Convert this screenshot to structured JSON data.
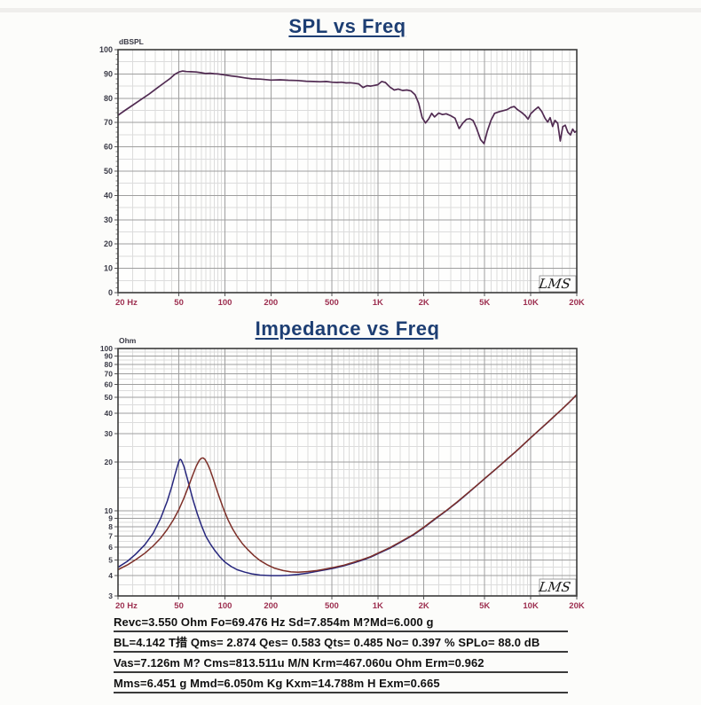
{
  "chart_data": [
    {
      "type": "line",
      "title": "SPL vs Freq",
      "unit_label": "dBSPL",
      "watermark": "LMS",
      "x_scale": "log",
      "x_range": [
        20,
        20000
      ],
      "x_ticks": [
        [
          20,
          "20 Hz"
        ],
        [
          50,
          "50"
        ],
        [
          100,
          "100"
        ],
        [
          200,
          "200"
        ],
        [
          500,
          "500"
        ],
        [
          1000,
          "1K"
        ],
        [
          2000,
          "2K"
        ],
        [
          5000,
          "5K"
        ],
        [
          10000,
          "10K"
        ],
        [
          20000,
          "20K"
        ]
      ],
      "y_scale": "linear",
      "y_range": [
        0,
        100
      ],
      "y_ticks": [
        [
          100,
          "100"
        ],
        [
          90,
          "90"
        ],
        [
          80,
          "80"
        ],
        [
          70,
          "70"
        ],
        [
          60,
          "60"
        ],
        [
          50,
          "50"
        ],
        [
          40,
          "40"
        ],
        [
          30,
          "30"
        ],
        [
          20,
          "20"
        ],
        [
          10,
          "10"
        ],
        [
          0,
          "0"
        ]
      ],
      "grid": "on",
      "series": [
        {
          "name": "spl-response",
          "color": "#512b52",
          "points": [
            [
              20,
              73
            ],
            [
              22,
              74.8
            ],
            [
              25,
              77.2
            ],
            [
              28,
              79.3
            ],
            [
              32,
              81.8
            ],
            [
              36,
              84.2
            ],
            [
              40,
              86.3
            ],
            [
              44,
              88.2
            ],
            [
              47,
              89.8
            ],
            [
              50,
              90.8
            ],
            [
              53,
              91.2
            ],
            [
              56,
              91.0
            ],
            [
              60,
              90.9
            ],
            [
              65,
              90.8
            ],
            [
              70,
              90.5
            ],
            [
              75,
              90.2
            ],
            [
              80,
              90.3
            ],
            [
              85,
              90.1
            ],
            [
              90,
              90.0
            ],
            [
              100,
              89.6
            ],
            [
              110,
              89.2
            ],
            [
              120,
              88.9
            ],
            [
              135,
              88.4
            ],
            [
              150,
              88.0
            ],
            [
              170,
              87.9
            ],
            [
              200,
              87.5
            ],
            [
              230,
              87.6
            ],
            [
              260,
              87.4
            ],
            [
              300,
              87.3
            ],
            [
              340,
              87.0
            ],
            [
              380,
              86.9
            ],
            [
              420,
              86.8
            ],
            [
              460,
              86.9
            ],
            [
              500,
              86.6
            ],
            [
              540,
              86.5
            ],
            [
              580,
              86.6
            ],
            [
              620,
              86.3
            ],
            [
              660,
              86.4
            ],
            [
              700,
              86.2
            ],
            [
              750,
              85.9
            ],
            [
              800,
              84.4
            ],
            [
              850,
              85.2
            ],
            [
              900,
              85.0
            ],
            [
              950,
              85.3
            ],
            [
              1000,
              85.6
            ],
            [
              1060,
              86.9
            ],
            [
              1120,
              86.5
            ],
            [
              1200,
              84.6
            ],
            [
              1280,
              83.4
            ],
            [
              1360,
              83.8
            ],
            [
              1450,
              83.2
            ],
            [
              1550,
              83.4
            ],
            [
              1650,
              83.0
            ],
            [
              1750,
              81.5
            ],
            [
              1850,
              78.0
            ],
            [
              1950,
              72.0
            ],
            [
              2050,
              69.8
            ],
            [
              2150,
              71.5
            ],
            [
              2250,
              73.8
            ],
            [
              2350,
              72.3
            ],
            [
              2500,
              73.9
            ],
            [
              2650,
              73.3
            ],
            [
              2800,
              73.6
            ],
            [
              3000,
              72.8
            ],
            [
              3200,
              71.8
            ],
            [
              3400,
              67.5
            ],
            [
              3600,
              69.8
            ],
            [
              3800,
              71.3
            ],
            [
              4000,
              71.6
            ],
            [
              4200,
              70.8
            ],
            [
              4400,
              68.0
            ],
            [
              4700,
              63.0
            ],
            [
              4950,
              61.3
            ],
            [
              5200,
              66.5
            ],
            [
              5500,
              71.0
            ],
            [
              5800,
              73.8
            ],
            [
              6200,
              74.4
            ],
            [
              6600,
              74.9
            ],
            [
              7000,
              75.3
            ],
            [
              7400,
              76.2
            ],
            [
              7800,
              76.6
            ],
            [
              8200,
              75.3
            ],
            [
              8700,
              74.2
            ],
            [
              9200,
              72.9
            ],
            [
              9600,
              71.4
            ],
            [
              10000,
              73.6
            ],
            [
              10600,
              75.2
            ],
            [
              11200,
              76.4
            ],
            [
              11800,
              74.6
            ],
            [
              12400,
              71.8
            ],
            [
              12900,
              70.2
            ],
            [
              13400,
              72.0
            ],
            [
              13900,
              68.4
            ],
            [
              14400,
              70.9
            ],
            [
              15000,
              69.7
            ],
            [
              15600,
              62.4
            ],
            [
              16200,
              68.3
            ],
            [
              16800,
              68.9
            ],
            [
              17500,
              66.0
            ],
            [
              18200,
              64.9
            ],
            [
              18800,
              67.3
            ],
            [
              19400,
              66.0
            ],
            [
              20000,
              66.6
            ]
          ]
        }
      ]
    },
    {
      "type": "line",
      "title": "Impedance vs Freq",
      "unit_label": "Ohm",
      "watermark": "LMS",
      "x_scale": "log",
      "x_range": [
        20,
        20000
      ],
      "x_ticks": [
        [
          20,
          "20 Hz"
        ],
        [
          50,
          "50"
        ],
        [
          100,
          "100"
        ],
        [
          200,
          "200"
        ],
        [
          500,
          "500"
        ],
        [
          1000,
          "1K"
        ],
        [
          2000,
          "2K"
        ],
        [
          5000,
          "5K"
        ],
        [
          10000,
          "10K"
        ],
        [
          20000,
          "20K"
        ]
      ],
      "y_scale": "log",
      "y_range": [
        3,
        100
      ],
      "y_ticks": [
        [
          100,
          "100"
        ],
        [
          90,
          "90"
        ],
        [
          80,
          "80"
        ],
        [
          70,
          "70"
        ],
        [
          60,
          "60"
        ],
        [
          50,
          "50"
        ],
        [
          40,
          "40"
        ],
        [
          30,
          "30"
        ],
        [
          20,
          "20"
        ],
        [
          10,
          "10"
        ],
        [
          9,
          "9"
        ],
        [
          8,
          "8"
        ],
        [
          7,
          "7"
        ],
        [
          6,
          "6"
        ],
        [
          5,
          "5"
        ],
        [
          4,
          "4"
        ],
        [
          3,
          "3"
        ]
      ],
      "grid": "on",
      "series": [
        {
          "name": "impedance-added-mass",
          "color": "#26267d",
          "points": [
            [
              20,
              4.5
            ],
            [
              23,
              4.9
            ],
            [
              26,
              5.4
            ],
            [
              30,
              6.2
            ],
            [
              34,
              7.3
            ],
            [
              38,
              9.0
            ],
            [
              42,
              11.5
            ],
            [
              45,
              14.2
            ],
            [
              47,
              16.5
            ],
            [
              49,
              19.0
            ],
            [
              50,
              20.3
            ],
            [
              51,
              20.8
            ],
            [
              52,
              20.5
            ],
            [
              54,
              18.8
            ],
            [
              56,
              16.6
            ],
            [
              59,
              13.8
            ],
            [
              62,
              11.6
            ],
            [
              66,
              9.6
            ],
            [
              70,
              8.2
            ],
            [
              75,
              7.0
            ],
            [
              80,
              6.3
            ],
            [
              86,
              5.7
            ],
            [
              93,
              5.2
            ],
            [
              100,
              4.85
            ],
            [
              110,
              4.55
            ],
            [
              120,
              4.35
            ],
            [
              135,
              4.2
            ],
            [
              150,
              4.1
            ],
            [
              170,
              4.03
            ],
            [
              200,
              4.0
            ],
            [
              230,
              4.0
            ],
            [
              260,
              4.02
            ],
            [
              300,
              4.07
            ],
            [
              350,
              4.15
            ],
            [
              400,
              4.25
            ],
            [
              460,
              4.35
            ],
            [
              520,
              4.45
            ],
            [
              600,
              4.6
            ],
            [
              700,
              4.8
            ],
            [
              800,
              5.0
            ],
            [
              900,
              5.2
            ],
            [
              1000,
              5.45
            ],
            [
              1200,
              5.9
            ],
            [
              1400,
              6.4
            ],
            [
              1700,
              7.1
            ],
            [
              2000,
              7.9
            ],
            [
              2400,
              9.0
            ],
            [
              2800,
              10.0
            ],
            [
              3300,
              11.3
            ],
            [
              3900,
              12.9
            ],
            [
              4500,
              14.5
            ],
            [
              5000,
              15.8
            ],
            [
              6000,
              18.3
            ],
            [
              7000,
              20.8
            ],
            [
              8000,
              23.2
            ],
            [
              9000,
              25.7
            ],
            [
              10000,
              28.2
            ],
            [
              11500,
              31.8
            ],
            [
              13000,
              35.3
            ],
            [
              14500,
              38.8
            ],
            [
              16000,
              42.3
            ],
            [
              18000,
              47.0
            ],
            [
              20000,
              52.0
            ]
          ]
        },
        {
          "name": "impedance-free-air",
          "color": "#7d2f28",
          "points": [
            [
              20,
              4.35
            ],
            [
              23,
              4.65
            ],
            [
              26,
              5.0
            ],
            [
              30,
              5.5
            ],
            [
              34,
              6.1
            ],
            [
              38,
              6.8
            ],
            [
              42,
              7.7
            ],
            [
              46,
              8.8
            ],
            [
              50,
              10.2
            ],
            [
              54,
              12.0
            ],
            [
              58,
              14.3
            ],
            [
              62,
              16.9
            ],
            [
              65,
              18.9
            ],
            [
              68,
              20.5
            ],
            [
              70,
              21.1
            ],
            [
              72,
              21.2
            ],
            [
              74,
              20.8
            ],
            [
              77,
              19.5
            ],
            [
              80,
              17.9
            ],
            [
              84,
              15.7
            ],
            [
              88,
              13.7
            ],
            [
              93,
              11.8
            ],
            [
              98,
              10.3
            ],
            [
              105,
              8.8
            ],
            [
              112,
              7.8
            ],
            [
              120,
              7.0
            ],
            [
              130,
              6.3
            ],
            [
              142,
              5.75
            ],
            [
              155,
              5.3
            ],
            [
              170,
              4.95
            ],
            [
              190,
              4.65
            ],
            [
              210,
              4.45
            ],
            [
              240,
              4.3
            ],
            [
              270,
              4.22
            ],
            [
              300,
              4.2
            ],
            [
              350,
              4.24
            ],
            [
              400,
              4.3
            ],
            [
              460,
              4.4
            ],
            [
              520,
              4.5
            ],
            [
              600,
              4.64
            ],
            [
              700,
              4.84
            ],
            [
              800,
              5.04
            ],
            [
              900,
              5.24
            ],
            [
              1000,
              5.5
            ],
            [
              1200,
              5.95
            ],
            [
              1400,
              6.45
            ],
            [
              1700,
              7.15
            ],
            [
              2000,
              7.95
            ],
            [
              2400,
              9.05
            ],
            [
              2800,
              10.05
            ],
            [
              3300,
              11.35
            ],
            [
              3900,
              12.95
            ],
            [
              4500,
              14.55
            ],
            [
              5000,
              15.85
            ],
            [
              6000,
              18.35
            ],
            [
              7000,
              20.85
            ],
            [
              8000,
              23.25
            ],
            [
              9000,
              25.75
            ],
            [
              10000,
              28.25
            ],
            [
              11500,
              31.85
            ],
            [
              13000,
              35.35
            ],
            [
              14500,
              38.85
            ],
            [
              16000,
              42.35
            ],
            [
              18000,
              47.05
            ],
            [
              20000,
              52.05
            ]
          ]
        }
      ]
    }
  ],
  "parameters": {
    "line1": "Revc=3.550 Ohm  Fo=69.476 Hz  Sd=7.854m M?Md=6.000 g",
    "line2": "BL=4.142 T措  Qms= 2.874  Qes= 0.583  Qts= 0.485  No= 0.397 %  SPLo= 88.0 dB",
    "line3": "Vas=7.126m M? Cms=813.511u M/N  Krm=467.060u Ohm  Erm=0.962",
    "line4": "Mms=6.451 g  Mmd=6.050m Kg  Kxm=14.788m H  Exm=0.665"
  },
  "colors": {
    "title": "#1d3e73",
    "x_label": "#9d2f50",
    "y_label": "#3a3a46",
    "grid_major": "#9e9e9e",
    "grid_minor": "#dcdcdc",
    "border": "#3b3b3b"
  }
}
